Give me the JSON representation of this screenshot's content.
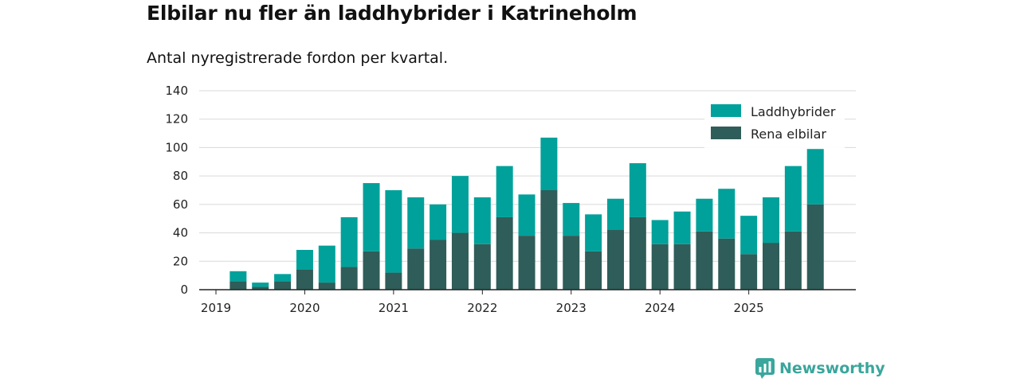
{
  "chart_data": {
    "type": "bar",
    "stacked": true,
    "title": "Elbilar nu fler än laddhybrider i Katrineholm",
    "subtitle": "Antal nyregistrerade fordon per kvartal.",
    "xlabel": "",
    "ylabel": "",
    "ylim": [
      0,
      140
    ],
    "yticks": [
      "0",
      "20",
      "40",
      "60",
      "80",
      "100",
      "120",
      "140"
    ],
    "xticks": [
      "2019",
      "2020",
      "2021",
      "2022",
      "2023",
      "2024",
      "2025"
    ],
    "categories": [
      "2019 Q1",
      "2019 Q2",
      "2019 Q3",
      "2019 Q4",
      "2020 Q1",
      "2020 Q2",
      "2020 Q3",
      "2020 Q4",
      "2021 Q1",
      "2021 Q2",
      "2021 Q3",
      "2021 Q4",
      "2022 Q1",
      "2022 Q2",
      "2022 Q3",
      "2022 Q4",
      "2023 Q1",
      "2023 Q2",
      "2023 Q3",
      "2023 Q4",
      "2024 Q1",
      "2024 Q2",
      "2024 Q3",
      "2024 Q4",
      "2025 Q1",
      "2025 Q2",
      "2025 Q3",
      "2025 Q4"
    ],
    "series": [
      {
        "name": "Rena elbilar",
        "color": "#2f5d59",
        "values": [
          0,
          6,
          2,
          6,
          14,
          5,
          16,
          27,
          12,
          29,
          35,
          40,
          32,
          51,
          38,
          70,
          38,
          27,
          42,
          51,
          32,
          32,
          41,
          36,
          25,
          33,
          41,
          60
        ]
      },
      {
        "name": "Laddhybrider",
        "color": "#00a19a",
        "values": [
          0,
          7,
          3,
          5,
          14,
          26,
          35,
          48,
          58,
          36,
          25,
          40,
          33,
          36,
          29,
          37,
          23,
          26,
          22,
          38,
          17,
          23,
          23,
          35,
          27,
          32,
          46,
          39
        ]
      }
    ],
    "legend": {
      "position": "top-right",
      "entries": [
        {
          "name": "Laddhybrider",
          "color": "#00a19a"
        },
        {
          "name": "Rena elbilar",
          "color": "#2f5d59"
        }
      ]
    },
    "grid": true
  },
  "branding": {
    "name": "Newsworthy",
    "color": "#3aa69c"
  }
}
